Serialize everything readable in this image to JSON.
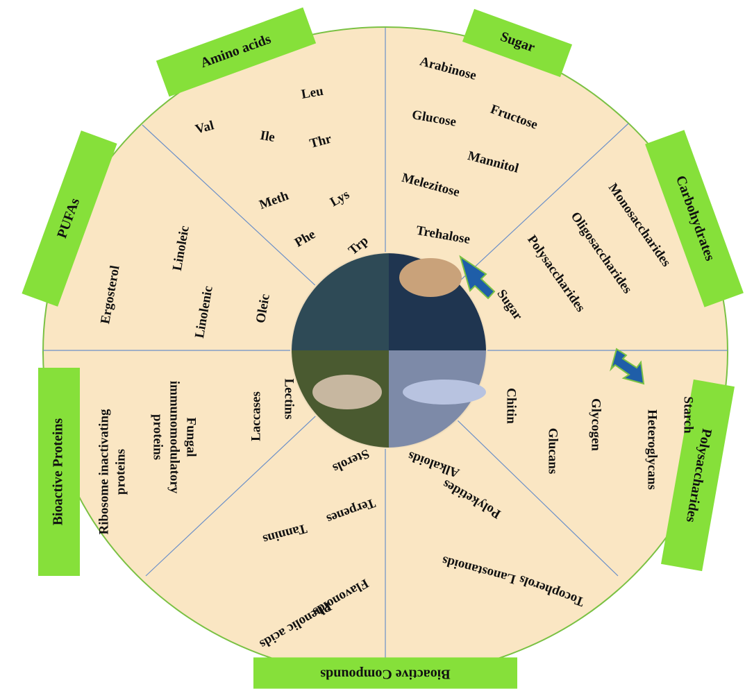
{
  "sections": [
    {
      "title": "Amino acids",
      "items": [
        "Leu",
        "Val",
        "Ile",
        "Thr",
        "Meth",
        "Lys",
        "Phe",
        "Trp"
      ]
    },
    {
      "title": "Sugar",
      "items": [
        "Arabinose",
        "Fructose",
        "Glucose",
        "Mannitol",
        "Melezitose",
        "Trehalose"
      ]
    },
    {
      "title": "Carbohydrates",
      "items": [
        "Monosaccharides",
        "Oligosaccharides",
        "Polysaccharides",
        "Sugar"
      ]
    },
    {
      "title": "PUFAs",
      "items": [
        "Linoleic",
        "Ergosterol",
        "Linolenic",
        "Oleic"
      ]
    },
    {
      "title": "Polysaccharides",
      "items": [
        "Starch",
        "Heteroglycans",
        "Glycogen",
        "Glucans",
        "Chitin"
      ]
    },
    {
      "title": "Bioactive Compounds",
      "items": [
        "Alkaloids",
        "Polyketides",
        "Lanostanoids",
        "Tocopherols",
        "Sterols",
        "Terpenes",
        "Tannins",
        "Flavonoids",
        "Phenolic acids"
      ]
    },
    {
      "title": "Bioactive Proteins",
      "items": [
        [
          "Ribosome inactivating",
          "proteins"
        ],
        [
          "Fungal",
          "immunomodulatory",
          "proteins"
        ],
        [
          "Laccases"
        ],
        [
          "Lectins"
        ]
      ]
    }
  ]
}
